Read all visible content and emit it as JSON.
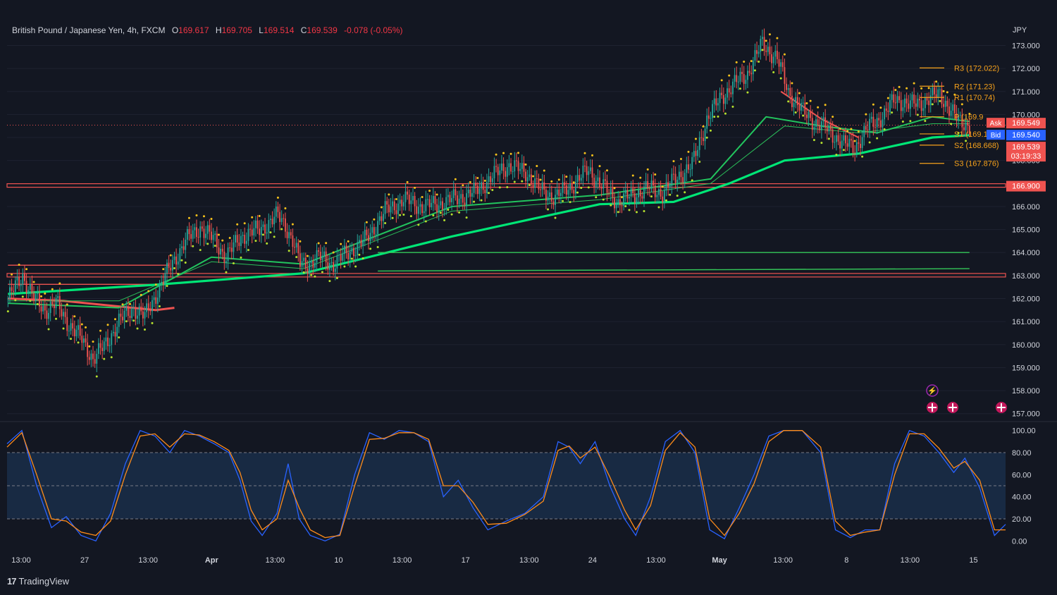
{
  "header": {
    "symbol": "British Pound / Japanese Yen, 4h, FXCM",
    "o_label": "O",
    "o": "169.617",
    "h_label": "H",
    "h": "169.705",
    "l_label": "L",
    "l": "169.514",
    "c_label": "C",
    "c": "169.539",
    "change": "-0.078 (-0.05%)"
  },
  "brand": "TradingView",
  "colors": {
    "background": "#131722",
    "up": "#26a69a",
    "down": "#ef5350",
    "ma_fast": "#22c55e",
    "ma_slow": "#00e676",
    "resistance": "#ef5350",
    "pivot": "#f7a21b",
    "stoch_k": "#2962ff",
    "stoch_d": "#ff8c1a"
  },
  "chart_data": [
    {
      "type": "candlestick",
      "currency": "JPY",
      "yticks": [
        "173.000",
        "172.000",
        "171.000",
        "170.000",
        "169.000",
        "168.000",
        "167.000",
        "166.000",
        "165.000",
        "164.000",
        "163.000",
        "162.000",
        "161.000",
        "160.000",
        "159.000",
        "158.000",
        "157.000"
      ],
      "ylim": [
        156.9,
        173.75
      ],
      "xticks": [
        "13:00",
        "27",
        "13:00",
        "Apr",
        "13:00",
        "10",
        "13:00",
        "17",
        "13:00",
        "24",
        "13:00",
        "May",
        "13:00",
        "8",
        "13:00",
        "15"
      ],
      "close_path": [
        [
          0,
          162.0
        ],
        [
          8,
          163.0
        ],
        [
          14,
          162.0
        ],
        [
          20,
          161.5
        ],
        [
          26,
          161.8
        ],
        [
          32,
          161.0
        ],
        [
          40,
          160.2
        ],
        [
          46,
          159.4
        ],
        [
          52,
          159.9
        ],
        [
          60,
          161.0
        ],
        [
          68,
          161.6
        ],
        [
          74,
          161.2
        ],
        [
          82,
          162.5
        ],
        [
          90,
          163.7
        ],
        [
          96,
          164.5
        ],
        [
          104,
          165.1
        ],
        [
          112,
          164.5
        ],
        [
          118,
          163.8
        ],
        [
          126,
          164.7
        ],
        [
          136,
          165.0
        ],
        [
          146,
          165.6
        ],
        [
          150,
          165.2
        ],
        [
          154,
          164.5
        ],
        [
          158,
          163.5
        ],
        [
          162,
          163.5
        ],
        [
          168,
          163.8
        ],
        [
          176,
          163.5
        ],
        [
          184,
          164.0
        ],
        [
          194,
          164.6
        ],
        [
          204,
          165.8
        ],
        [
          214,
          166.3
        ],
        [
          224,
          166.0
        ],
        [
          232,
          166.1
        ],
        [
          240,
          166.3
        ],
        [
          252,
          166.6
        ],
        [
          262,
          167.3
        ],
        [
          270,
          167.8
        ],
        [
          280,
          167.5
        ],
        [
          288,
          166.7
        ],
        [
          296,
          166.4
        ],
        [
          306,
          167.0
        ],
        [
          314,
          167.6
        ],
        [
          320,
          167.0
        ],
        [
          330,
          166.2
        ],
        [
          338,
          166.5
        ],
        [
          346,
          166.8
        ],
        [
          354,
          166.6
        ],
        [
          362,
          167.3
        ],
        [
          370,
          167.8
        ],
        [
          378,
          169.8
        ],
        [
          386,
          170.8
        ],
        [
          394,
          171.4
        ],
        [
          400,
          171.8
        ],
        [
          408,
          173.1
        ],
        [
          416,
          172.4
        ],
        [
          422,
          171.0
        ],
        [
          430,
          170.1
        ],
        [
          436,
          169.7
        ],
        [
          444,
          169.3
        ],
        [
          452,
          168.7
        ],
        [
          458,
          168.6
        ],
        [
          466,
          169.5
        ],
        [
          474,
          170.0
        ],
        [
          480,
          170.7
        ],
        [
          488,
          170.4
        ],
        [
          496,
          170.6
        ],
        [
          504,
          170.9
        ],
        [
          508,
          170.4
        ],
        [
          514,
          169.7
        ],
        [
          520,
          169.54
        ]
      ],
      "moving_averages": [
        {
          "style": "thick",
          "points": [
            [
              0,
              162.2
            ],
            [
              80,
              162.6
            ],
            [
              160,
              163.1
            ],
            [
              240,
              164.7
            ],
            [
              320,
              166.1
            ],
            [
              360,
              166.2
            ],
            [
              390,
              167.0
            ],
            [
              420,
              168.0
            ],
            [
              460,
              168.3
            ],
            [
              500,
              169.0
            ],
            [
              520,
              169.1
            ]
          ]
        },
        {
          "style": "mid",
          "points": [
            [
              0,
              161.8
            ],
            [
              60,
              161.6
            ],
            [
              110,
              163.8
            ],
            [
              160,
              163.5
            ],
            [
              240,
              166.0
            ],
            [
              320,
              166.5
            ],
            [
              380,
              167.2
            ],
            [
              410,
              169.9
            ],
            [
              440,
              169.5
            ],
            [
              470,
              169.2
            ],
            [
              500,
              169.9
            ],
            [
              520,
              169.7
            ]
          ]
        },
        {
          "style": "thin",
          "points": [
            [
              0,
              161.9
            ],
            [
              60,
              161.9
            ],
            [
              110,
              163.6
            ],
            [
              160,
              163.3
            ],
            [
              240,
              165.8
            ],
            [
              320,
              166.3
            ],
            [
              380,
              167.0
            ],
            [
              420,
              169.5
            ],
            [
              460,
              169.2
            ],
            [
              500,
              169.6
            ],
            [
              520,
              169.6
            ]
          ]
        },
        {
          "style": "flat",
          "points": [
            [
              200,
              164.0
            ],
            [
              520,
              164.0
            ]
          ]
        },
        {
          "style": "flat",
          "points": [
            [
              200,
              163.2
            ],
            [
              520,
              163.3
            ]
          ]
        }
      ],
      "horizontal_levels": [
        {
          "price": 166.9,
          "style": "resistance-band",
          "label": "166.900"
        },
        {
          "price": 163.0,
          "style": "resistance-band"
        },
        {
          "price": 163.45,
          "style": "red-thin",
          "x0": 0,
          "x1": 60
        },
        {
          "price": 162.62,
          "style": "red-thin",
          "x0": 0,
          "x1": 60
        }
      ],
      "pivots": [
        {
          "label": "R3 (172.022)",
          "price": 172.022
        },
        {
          "label": "R2 (171.23)",
          "price": 171.23
        },
        {
          "label": "R1 (170.74)",
          "price": 170.74
        },
        {
          "label": "P (169.9",
          "price": 169.9
        },
        {
          "label": "S1 (169.157)",
          "price": 169.157
        },
        {
          "label": "S2 (168.668)",
          "price": 168.668
        },
        {
          "label": "S3 (167.876)",
          "price": 167.876
        }
      ],
      "price_tags": [
        {
          "name": "ask",
          "label": "Ask",
          "value": "169.549",
          "price": 169.64,
          "color": "#ef5350"
        },
        {
          "name": "bid",
          "label": "Bid",
          "value": "169.540",
          "price": 169.12,
          "color": "#2962ff"
        },
        {
          "name": "last",
          "value": "169.539",
          "countdown": "03:19:33",
          "price": 168.6,
          "color": "#ef5350"
        },
        {
          "name": "level",
          "value": "166.900",
          "price": 166.9,
          "color": "#ef5350"
        }
      ]
    },
    {
      "type": "line",
      "name": "stochastic",
      "yticks": [
        "100.00",
        "80.00",
        "60.00",
        "40.00",
        "20.00",
        "0.00"
      ],
      "ylim": [
        -3,
        103
      ],
      "band": [
        20,
        80
      ],
      "midline": 50,
      "series": [
        {
          "key": "k",
          "points": [
            [
              0,
              88
            ],
            [
              8,
              100
            ],
            [
              16,
              50
            ],
            [
              24,
              12
            ],
            [
              32,
              22
            ],
            [
              40,
              5
            ],
            [
              48,
              0
            ],
            [
              56,
              25
            ],
            [
              64,
              70
            ],
            [
              72,
              100
            ],
            [
              80,
              95
            ],
            [
              88,
              80
            ],
            [
              96,
              100
            ],
            [
              104,
              95
            ],
            [
              112,
              88
            ],
            [
              120,
              80
            ],
            [
              126,
              55
            ],
            [
              132,
              18
            ],
            [
              138,
              5
            ],
            [
              146,
              25
            ],
            [
              152,
              70
            ],
            [
              158,
              20
            ],
            [
              164,
              5
            ],
            [
              172,
              0
            ],
            [
              180,
              6
            ],
            [
              188,
              60
            ],
            [
              196,
              98
            ],
            [
              204,
              92
            ],
            [
              212,
              100
            ],
            [
              220,
              98
            ],
            [
              228,
              90
            ],
            [
              236,
              40
            ],
            [
              244,
              55
            ],
            [
              252,
              30
            ],
            [
              260,
              10
            ],
            [
              270,
              18
            ],
            [
              280,
              25
            ],
            [
              290,
              40
            ],
            [
              298,
              90
            ],
            [
              304,
              85
            ],
            [
              310,
              70
            ],
            [
              318,
              90
            ],
            [
              326,
              50
            ],
            [
              334,
              20
            ],
            [
              340,
              5
            ],
            [
              348,
              40
            ],
            [
              356,
              90
            ],
            [
              364,
              100
            ],
            [
              372,
              80
            ],
            [
              380,
              10
            ],
            [
              388,
              2
            ],
            [
              396,
              30
            ],
            [
              404,
              60
            ],
            [
              412,
              95
            ],
            [
              420,
              100
            ],
            [
              430,
              100
            ],
            [
              440,
              80
            ],
            [
              448,
              10
            ],
            [
              456,
              3
            ],
            [
              464,
              10
            ],
            [
              472,
              10
            ],
            [
              480,
              70
            ],
            [
              488,
              100
            ],
            [
              496,
              95
            ],
            [
              504,
              80
            ],
            [
              512,
              62
            ],
            [
              518,
              75
            ],
            [
              526,
              48
            ],
            [
              534,
              5
            ],
            [
              540,
              15
            ]
          ]
        },
        {
          "key": "d",
          "points": [
            [
              0,
              85
            ],
            [
              8,
              98
            ],
            [
              16,
              60
            ],
            [
              24,
              20
            ],
            [
              32,
              18
            ],
            [
              40,
              8
            ],
            [
              48,
              5
            ],
            [
              56,
              18
            ],
            [
              64,
              60
            ],
            [
              72,
              95
            ],
            [
              80,
              97
            ],
            [
              88,
              85
            ],
            [
              96,
              97
            ],
            [
              104,
              96
            ],
            [
              112,
              90
            ],
            [
              120,
              82
            ],
            [
              126,
              62
            ],
            [
              132,
              28
            ],
            [
              138,
              10
            ],
            [
              146,
              20
            ],
            [
              152,
              55
            ],
            [
              158,
              30
            ],
            [
              164,
              10
            ],
            [
              172,
              3
            ],
            [
              180,
              5
            ],
            [
              188,
              50
            ],
            [
              196,
              92
            ],
            [
              204,
              93
            ],
            [
              212,
              98
            ],
            [
              220,
              98
            ],
            [
              228,
              92
            ],
            [
              236,
              50
            ],
            [
              244,
              50
            ],
            [
              252,
              35
            ],
            [
              260,
              15
            ],
            [
              270,
              16
            ],
            [
              280,
              24
            ],
            [
              290,
              36
            ],
            [
              298,
              82
            ],
            [
              304,
              86
            ],
            [
              310,
              75
            ],
            [
              318,
              85
            ],
            [
              326,
              58
            ],
            [
              334,
              28
            ],
            [
              340,
              10
            ],
            [
              348,
              32
            ],
            [
              356,
              82
            ],
            [
              364,
              98
            ],
            [
              372,
              85
            ],
            [
              380,
              20
            ],
            [
              388,
              5
            ],
            [
              396,
              25
            ],
            [
              404,
              52
            ],
            [
              412,
              90
            ],
            [
              420,
              100
            ],
            [
              430,
              100
            ],
            [
              440,
              85
            ],
            [
              448,
              18
            ],
            [
              456,
              5
            ],
            [
              464,
              8
            ],
            [
              472,
              10
            ],
            [
              480,
              60
            ],
            [
              488,
              97
            ],
            [
              496,
              97
            ],
            [
              504,
              84
            ],
            [
              512,
              66
            ],
            [
              518,
              72
            ],
            [
              526,
              55
            ],
            [
              534,
              10
            ],
            [
              540,
              10
            ]
          ]
        }
      ]
    }
  ]
}
